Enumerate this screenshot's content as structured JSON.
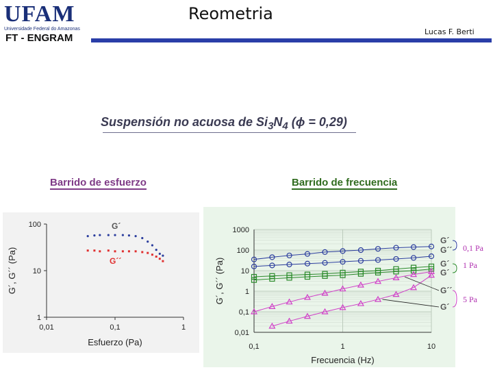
{
  "header": {
    "logo_text": "UFAM",
    "logo_subtitle": "Universidade Federal do Amazonas",
    "department": "FT - ENGRAM",
    "title": "Reometria",
    "author": "Lucas F. Berti"
  },
  "subtitle": "Suspensión no acuosa de Si3N4 (ϕ = 0,29)",
  "sections": {
    "left": "Barrido de esfuerzo",
    "right": "Barrido de frecuencia"
  },
  "colors": {
    "blue": "#2c3e9e",
    "red": "#e03030",
    "green": "#2a8a2a",
    "magenta": "#d040c8",
    "gray": "#555555"
  },
  "chart_data": [
    {
      "type": "scatter",
      "title": "Barrido de esfuerzo",
      "xlabel": "Esfuerzo (Pa)",
      "ylabel": "G´, G´´ (Pa)",
      "xscale": "log",
      "yscale": "log",
      "xlim": [
        0.01,
        1
      ],
      "ylim": [
        1,
        100
      ],
      "xticks": [
        "0,01",
        "0,1",
        "1"
      ],
      "yticks": [
        "1",
        "10",
        "100"
      ],
      "grid": false,
      "annotations": [
        "G´",
        "G´´"
      ],
      "series": [
        {
          "name": "G´",
          "color": "#2c3e9e",
          "x": [
            0.04,
            0.05,
            0.06,
            0.08,
            0.1,
            0.13,
            0.16,
            0.2,
            0.25,
            0.3,
            0.35,
            0.4,
            0.45,
            0.5
          ],
          "y": [
            55,
            57,
            58,
            58,
            58,
            58,
            57,
            55,
            50,
            42,
            35,
            28,
            23,
            21
          ]
        },
        {
          "name": "G´´",
          "color": "#e03030",
          "x": [
            0.04,
            0.05,
            0.06,
            0.08,
            0.1,
            0.13,
            0.16,
            0.2,
            0.25,
            0.3,
            0.35,
            0.4,
            0.45,
            0.5
          ],
          "y": [
            27,
            27,
            26,
            27,
            26,
            26,
            26,
            26,
            25,
            24,
            22,
            20,
            18,
            16
          ]
        }
      ]
    },
    {
      "type": "line",
      "title": "Barrido de frecuencia",
      "xlabel": "Frecuencia (Hz)",
      "ylabel": "G´, G´´ (Pa)",
      "xscale": "log",
      "yscale": "log",
      "xlim": [
        0.1,
        10
      ],
      "ylim": [
        0.01,
        1000
      ],
      "xticks": [
        "0,1",
        "1",
        "10"
      ],
      "yticks": [
        "0,01",
        "0,1",
        "1",
        "10",
        "100",
        "1000"
      ],
      "grid": true,
      "series": [
        {
          "name": "G´",
          "group": "0,1 Pa",
          "color": "#2c3e9e",
          "marker": "circle",
          "x": [
            0.1,
            0.16,
            0.25,
            0.4,
            0.63,
            1,
            1.6,
            2.5,
            4,
            6.3,
            10
          ],
          "y": [
            35,
            45,
            55,
            65,
            80,
            90,
            100,
            115,
            130,
            140,
            150
          ]
        },
        {
          "name": "G´´",
          "group": "0,1 Pa",
          "color": "#2c3e9e",
          "marker": "circle",
          "x": [
            0.1,
            0.16,
            0.25,
            0.4,
            0.63,
            1,
            1.6,
            2.5,
            4,
            6.3,
            10
          ],
          "y": [
            16,
            18,
            20,
            22,
            24,
            27,
            30,
            33,
            37,
            42,
            50
          ]
        },
        {
          "name": "G´",
          "group": "1 Pa",
          "color": "#2a8a2a",
          "marker": "square",
          "x": [
            0.1,
            0.16,
            0.25,
            0.4,
            0.63,
            1,
            1.6,
            2.5,
            4,
            6.3,
            10
          ],
          "y": [
            5,
            5.5,
            6,
            6.5,
            7,
            8,
            9,
            10,
            12,
            14,
            16
          ]
        },
        {
          "name": "G´´",
          "group": "1 Pa",
          "color": "#2a8a2a",
          "marker": "square",
          "x": [
            0.1,
            0.16,
            0.25,
            0.4,
            0.63,
            1,
            1.6,
            2.5,
            4,
            6.3,
            10
          ],
          "y": [
            3.5,
            4,
            4.5,
            5,
            5.5,
            6,
            7,
            8,
            9,
            10,
            12
          ]
        },
        {
          "name": "G´",
          "group": "5 Pa",
          "color": "#d040c8",
          "marker": "triangle",
          "x": [
            0.1,
            0.16,
            0.25,
            0.4,
            0.63,
            1,
            1.6,
            2.5,
            4,
            6.3,
            10
          ],
          "y": [
            0.1,
            0.18,
            0.3,
            0.5,
            0.8,
            1.3,
            2,
            3,
            4.5,
            6.5,
            9
          ]
        },
        {
          "name": "G´´",
          "group": "5 Pa",
          "color": "#d040c8",
          "marker": "triangle",
          "x": [
            0.16,
            0.25,
            0.4,
            0.63,
            1,
            1.6,
            2.5,
            4,
            6.3,
            10
          ],
          "y": [
            0.02,
            0.035,
            0.06,
            0.1,
            0.16,
            0.25,
            0.4,
            0.7,
            1.5,
            6
          ]
        }
      ],
      "legend": [
        {
          "labels": [
            "G´",
            "G´´"
          ],
          "group": "0,1 Pa"
        },
        {
          "labels": [
            "G´",
            "G´"
          ],
          "group": "1 Pa"
        },
        {
          "labels": [
            "G´´",
            "G´"
          ],
          "group": "5 Pa"
        }
      ]
    }
  ]
}
